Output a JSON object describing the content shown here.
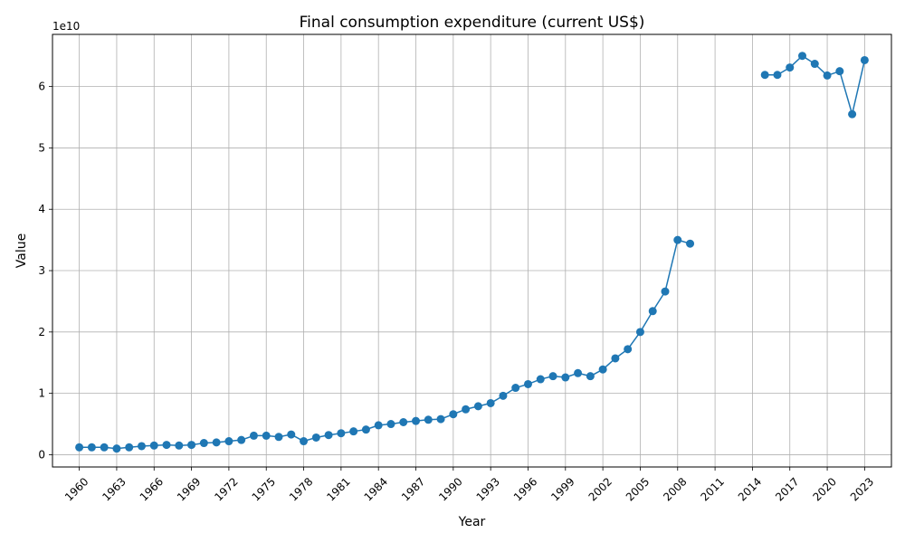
{
  "chart_data": {
    "type": "line",
    "title": "Final consumption expenditure (current US$)",
    "xlabel": "Year",
    "ylabel": "Value",
    "y_offset_label": "1e10",
    "y_ticks": [
      0,
      1,
      2,
      3,
      4,
      5,
      6
    ],
    "x_ticks": [
      1960,
      1963,
      1966,
      1969,
      1972,
      1975,
      1978,
      1981,
      1984,
      1987,
      1990,
      1993,
      1996,
      1999,
      2002,
      2005,
      2008,
      2011,
      2014,
      2017,
      2020,
      2023
    ],
    "xlim": [
      1957.85,
      2025.15
    ],
    "ylim": [
      -0.2,
      6.85
    ],
    "grid": true,
    "line_color": "#1f77b4",
    "series": [
      {
        "segments": [
          {
            "x": [
              1960,
              1961,
              1962,
              1963,
              1964,
              1965,
              1966,
              1967,
              1968,
              1969,
              1970,
              1971,
              1972,
              1973,
              1974,
              1975,
              1976,
              1977,
              1978,
              1979,
              1980,
              1981,
              1982,
              1983,
              1984,
              1985,
              1986,
              1987,
              1988,
              1989,
              1990,
              1991,
              1992,
              1993,
              1994,
              1995,
              1996,
              1997,
              1998,
              1999,
              2000,
              2001,
              2002,
              2003,
              2004,
              2005,
              2006,
              2007,
              2008,
              2009
            ],
            "y": [
              0.12,
              0.12,
              0.12,
              0.1,
              0.12,
              0.14,
              0.15,
              0.16,
              0.15,
              0.16,
              0.19,
              0.2,
              0.22,
              0.24,
              0.31,
              0.31,
              0.29,
              0.33,
              0.22,
              0.28,
              0.32,
              0.35,
              0.38,
              0.41,
              0.48,
              0.5,
              0.53,
              0.55,
              0.57,
              0.58,
              0.66,
              0.74,
              0.79,
              0.84,
              0.96,
              1.09,
              1.15,
              1.23,
              1.28,
              1.26,
              1.33,
              1.28,
              1.39,
              1.57,
              1.72,
              2.0,
              2.34,
              2.66,
              3.5,
              3.44
            ]
          },
          {
            "x": [
              2015,
              2016,
              2017,
              2018,
              2019,
              2020,
              2021,
              2022,
              2023
            ],
            "y": [
              6.19,
              6.19,
              6.31,
              6.5,
              6.37,
              6.18,
              6.25,
              5.55,
              6.43
            ]
          }
        ]
      }
    ]
  }
}
